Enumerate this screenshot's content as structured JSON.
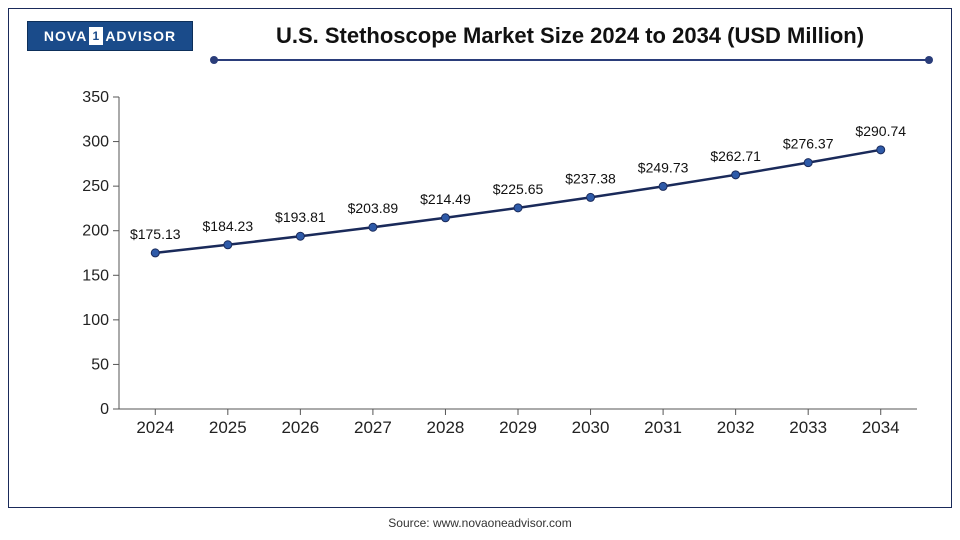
{
  "logo": {
    "pre": "NOVA",
    "one": "1",
    "post": "ADVISOR"
  },
  "title": "U.S. Stethoscope Market Size 2024 to 2034 (USD Million)",
  "source": "Source: www.novaoneadvisor.com",
  "chart": {
    "type": "line",
    "categories": [
      "2024",
      "2025",
      "2026",
      "2027",
      "2028",
      "2029",
      "2030",
      "2031",
      "2032",
      "2033",
      "2034"
    ],
    "values": [
      175.13,
      184.23,
      193.81,
      203.89,
      214.49,
      225.65,
      237.38,
      249.73,
      262.71,
      276.37,
      290.74
    ],
    "point_labels": [
      "$175.13",
      "$184.23",
      "$193.81",
      "$203.89",
      "$214.49",
      "$225.65",
      "$237.38",
      "$249.73",
      "$262.71",
      "$276.37",
      "$290.74"
    ],
    "line_color": "#1a2a5a",
    "marker_fill": "#2e5aa8",
    "marker_stroke": "#1a2a5a",
    "marker_radius": 4,
    "ylim": [
      0,
      350
    ],
    "ytick_step": 50,
    "axis_color": "#555555",
    "tick_fontsize": 16,
    "label_fontsize": 14,
    "title_fontsize": 22,
    "background_color": "#ffffff",
    "underline_color": "#2a3d7a"
  }
}
